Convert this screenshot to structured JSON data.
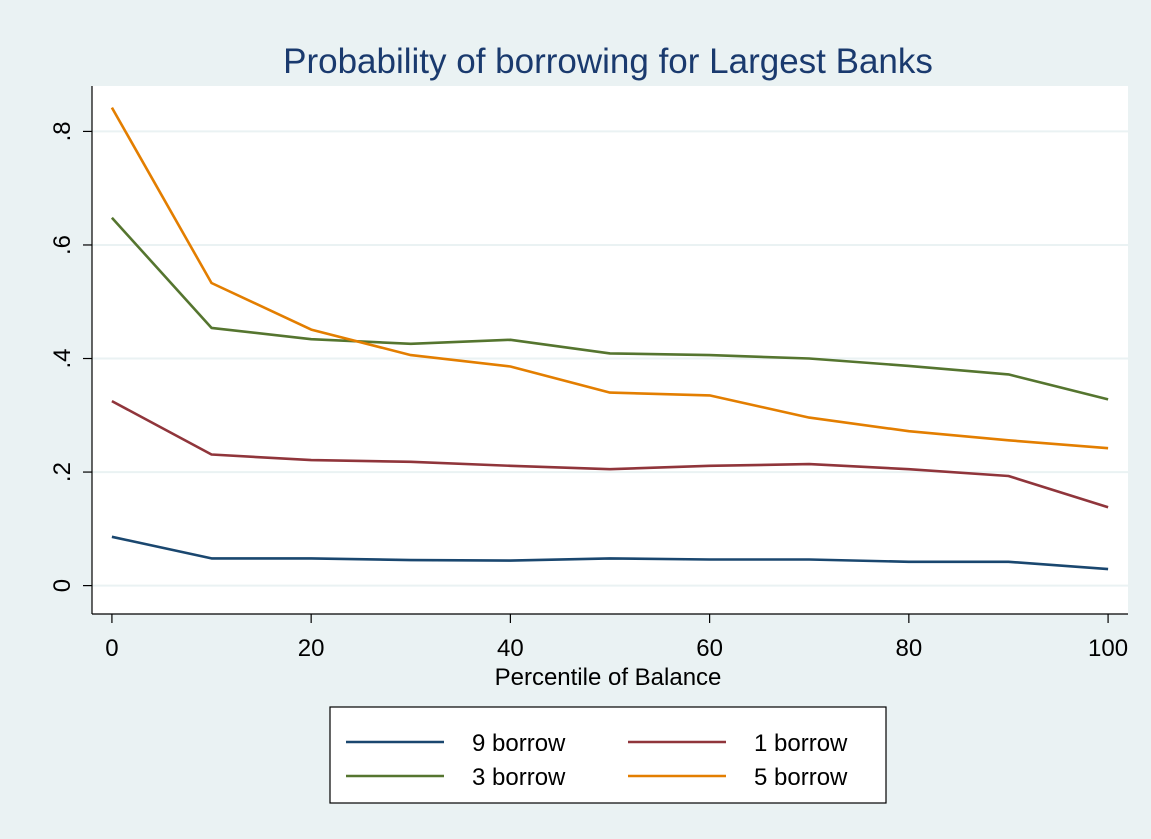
{
  "chart_data": {
    "type": "line",
    "title": "Probability of borrowing for Largest Banks",
    "xlabel": "Percentile of Balance",
    "ylabel": "",
    "x": [
      0,
      10,
      20,
      30,
      40,
      50,
      60,
      70,
      80,
      90,
      100
    ],
    "xlim": [
      -2,
      102
    ],
    "ylim": [
      -0.05,
      0.88
    ],
    "xticks": [
      {
        "value": 0,
        "label": "0"
      },
      {
        "value": 20,
        "label": "20"
      },
      {
        "value": 40,
        "label": "40"
      },
      {
        "value": 60,
        "label": "60"
      },
      {
        "value": 80,
        "label": "80"
      },
      {
        "value": 100,
        "label": "100"
      }
    ],
    "yticks": [
      {
        "value": 0,
        "label": "0"
      },
      {
        "value": 0.2,
        "label": ".2"
      },
      {
        "value": 0.4,
        "label": ".4"
      },
      {
        "value": 0.6,
        "label": ".6"
      },
      {
        "value": 0.8,
        "label": ".8"
      }
    ],
    "grid": true,
    "legend_position": "bottom",
    "series": [
      {
        "name": "9 borrow",
        "color": "#1a476f",
        "values": [
          0.086,
          0.048,
          0.048,
          0.045,
          0.044,
          0.048,
          0.046,
          0.046,
          0.042,
          0.042,
          0.029
        ]
      },
      {
        "name": "1 borrow",
        "color": "#90353b",
        "values": [
          0.325,
          0.231,
          0.221,
          0.218,
          0.211,
          0.205,
          0.211,
          0.214,
          0.205,
          0.193,
          0.138
        ]
      },
      {
        "name": "3 borrow",
        "color": "#55752f",
        "values": [
          0.648,
          0.454,
          0.434,
          0.426,
          0.433,
          0.409,
          0.406,
          0.4,
          0.387,
          0.372,
          0.328
        ]
      },
      {
        "name": "5 borrow",
        "color": "#e37e00",
        "values": [
          0.842,
          0.533,
          0.451,
          0.406,
          0.386,
          0.34,
          0.335,
          0.296,
          0.272,
          0.256,
          0.242
        ]
      }
    ]
  }
}
